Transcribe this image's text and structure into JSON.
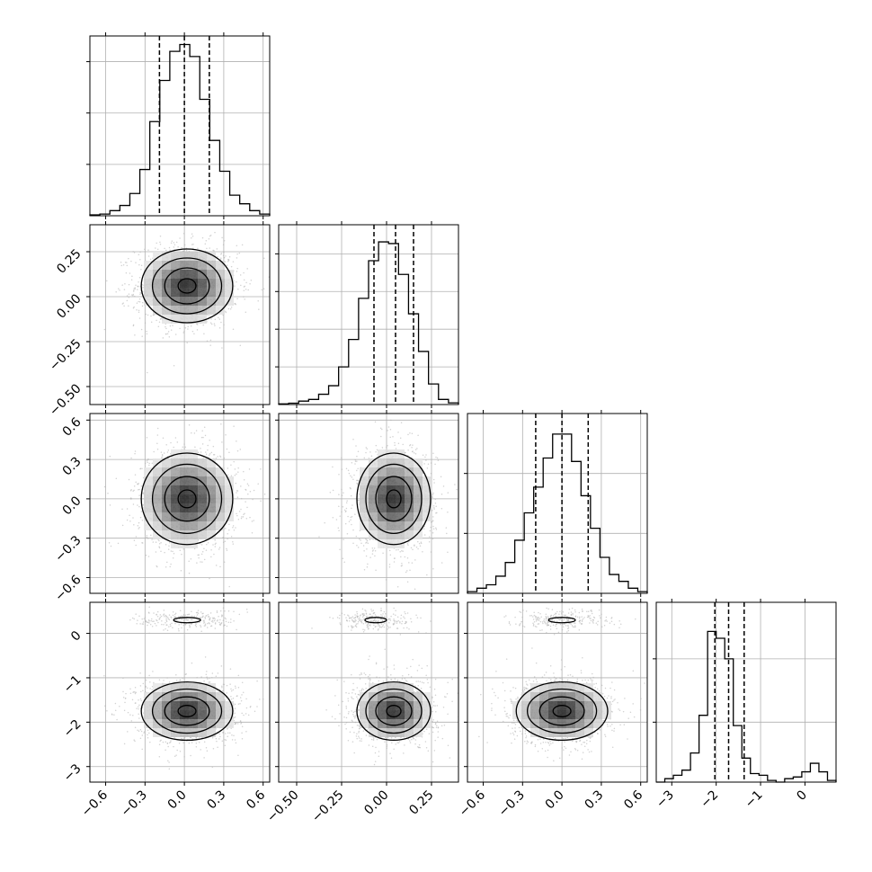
{
  "chart_data": {
    "type": "corner",
    "grid": true,
    "parameters": [
      {
        "range": [
          -0.72,
          0.65
        ],
        "ticks": [
          -0.6,
          -0.3,
          0.0,
          0.3,
          0.6
        ],
        "tick_labels": [
          "−0.6",
          "−0.3",
          "0.0",
          "0.3",
          "0.6"
        ]
      },
      {
        "range": [
          -0.6,
          0.4
        ],
        "ticks": [
          -0.5,
          -0.25,
          0.0,
          0.25
        ],
        "tick_labels": [
          "−0.50",
          "−0.25",
          "0.00",
          "0.25"
        ]
      },
      {
        "range": [
          -0.72,
          0.65
        ],
        "ticks": [
          -0.6,
          -0.3,
          0.0,
          0.3,
          0.6
        ],
        "tick_labels": [
          "−0.6",
          "−0.3",
          "0.0",
          "0.3",
          "0.6"
        ]
      },
      {
        "range": [
          -3.35,
          0.7
        ],
        "ticks": [
          -3,
          -2,
          -1,
          0
        ],
        "tick_labels": [
          "−3",
          "−2",
          "−1",
          "0"
        ]
      }
    ],
    "histograms": [
      {
        "param": 0,
        "ymax": 1.0,
        "y_ticks": [
          0.3,
          0.6,
          0.9
        ],
        "quantiles": [
          -0.19,
          0.0,
          0.19
        ],
        "values": [
          0.005,
          0.01,
          0.03,
          0.06,
          0.13,
          0.27,
          0.55,
          0.79,
          0.96,
          1.0,
          0.93,
          0.68,
          0.44,
          0.26,
          0.12,
          0.07,
          0.03,
          0.01
        ]
      },
      {
        "param": 1,
        "ymax": 1.0,
        "y_ticks": [
          0.22,
          0.44,
          0.66,
          0.88
        ],
        "quantiles": [
          -0.07,
          0.05,
          0.15
        ],
        "values": [
          0.004,
          0.008,
          0.02,
          0.03,
          0.06,
          0.11,
          0.22,
          0.38,
          0.62,
          0.84,
          0.95,
          0.94,
          0.76,
          0.53,
          0.31,
          0.12,
          0.03,
          0.01
        ]
      },
      {
        "param": 2,
        "ymax": 1.0,
        "y_ticks": [
          0.35,
          0.7
        ],
        "quantiles": [
          -0.2,
          0.0,
          0.2
        ],
        "values": [
          0.01,
          0.03,
          0.05,
          0.1,
          0.18,
          0.31,
          0.47,
          0.62,
          0.79,
          0.93,
          0.93,
          0.77,
          0.57,
          0.38,
          0.21,
          0.11,
          0.07,
          0.03,
          0.01
        ]
      },
      {
        "param": 3,
        "ymax": 1.0,
        "y_ticks": [
          0.35,
          0.72
        ],
        "quantiles": [
          -2.03,
          -1.72,
          -1.37
        ],
        "values": [
          0.0,
          0.02,
          0.04,
          0.07,
          0.17,
          0.39,
          0.88,
          0.84,
          0.72,
          0.33,
          0.14,
          0.05,
          0.04,
          0.01,
          0.0,
          0.02,
          0.03,
          0.06,
          0.11,
          0.06,
          0.01
        ]
      }
    ],
    "scatter_panels": [
      {
        "x_param": 0,
        "y_param": 1,
        "blobs": [
          {
            "cx": 0.02,
            "cy": 0.06,
            "sx": 0.17,
            "sy": 0.1,
            "weight": 1.0
          }
        ]
      },
      {
        "x_param": 0,
        "y_param": 2,
        "blobs": [
          {
            "cx": 0.02,
            "cy": 0.0,
            "sx": 0.17,
            "sy": 0.17,
            "weight": 1.0
          }
        ]
      },
      {
        "x_param": 1,
        "y_param": 2,
        "blobs": [
          {
            "cx": 0.04,
            "cy": 0.0,
            "sx": 0.1,
            "sy": 0.17,
            "weight": 1.0
          }
        ]
      },
      {
        "x_param": 0,
        "y_param": 3,
        "blobs": [
          {
            "cx": 0.02,
            "cy": -1.75,
            "sx": 0.17,
            "sy": 0.32,
            "weight": 0.88
          },
          {
            "cx": 0.02,
            "cy": 0.3,
            "sx": 0.17,
            "sy": 0.1,
            "weight": 0.12
          }
        ]
      },
      {
        "x_param": 1,
        "y_param": 3,
        "blobs": [
          {
            "cx": 0.04,
            "cy": -1.75,
            "sx": 0.1,
            "sy": 0.32,
            "weight": 0.88
          },
          {
            "cx": -0.06,
            "cy": 0.3,
            "sx": 0.1,
            "sy": 0.1,
            "weight": 0.12
          }
        ]
      },
      {
        "x_param": 2,
        "y_param": 3,
        "blobs": [
          {
            "cx": 0.0,
            "cy": -1.75,
            "sx": 0.17,
            "sy": 0.32,
            "weight": 0.88
          },
          {
            "cx": 0.0,
            "cy": 0.3,
            "sx": 0.17,
            "sy": 0.1,
            "weight": 0.12
          }
        ]
      }
    ],
    "style": {
      "line_color": "#000000",
      "point_color": "#b4b4b4",
      "grid_color": "#b0b0b0",
      "quantile_line": "dashed"
    }
  }
}
